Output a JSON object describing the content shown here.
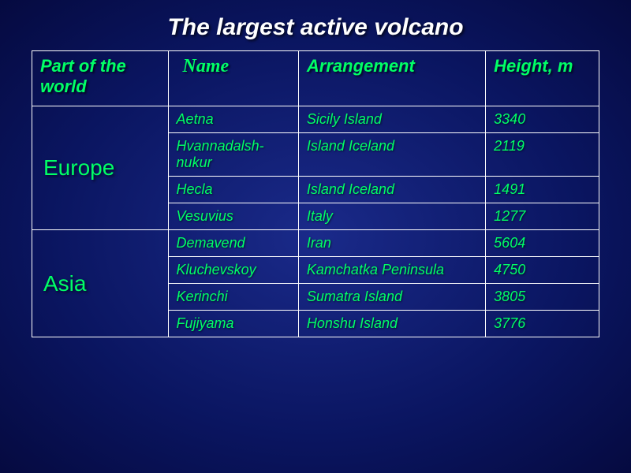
{
  "title": "The largest active volcano",
  "headers": {
    "part": "Part of the world",
    "name": "Name",
    "arrangement": "Arrangement",
    "height": "Height, m"
  },
  "regions": [
    {
      "label": "Europe",
      "rows": [
        {
          "name": "Aetna",
          "arrangement": "Sicily Island",
          "height": "3340"
        },
        {
          "name": "Hvannadalsh-nukur",
          "arrangement": "Island Iceland",
          "height": "2119"
        },
        {
          "name": "Hecla",
          "arrangement": "Island Iceland",
          "height": "1491"
        },
        {
          "name": "Vesuvius",
          "arrangement": "Italy",
          "height": "1277"
        }
      ]
    },
    {
      "label": "Asia",
      "rows": [
        {
          "name": "Demavend",
          "arrangement": "Iran",
          "height": "5604"
        },
        {
          "name": "Kluchevskoy",
          "arrangement": "Kamchatka Peninsula",
          "height": "4750"
        },
        {
          "name": "Kerinchi",
          "arrangement": "Sumatra Island",
          "height": "3805"
        },
        {
          "name": "Fujiyama",
          "arrangement": "Honshu Island",
          "height": "3776"
        }
      ]
    }
  ],
  "styling": {
    "background_gradient": [
      "#1a2a8a",
      "#0a1560",
      "#050a40"
    ],
    "text_color": "#00ff66",
    "title_color": "#ffffff",
    "border_color": "#ffffff",
    "title_fontsize": 30,
    "header_fontsize": 22,
    "region_fontsize": 28,
    "cell_fontsize": 18,
    "font_family": "Arial",
    "name_header_font": "Times New Roman",
    "col_widths": {
      "part": "24%",
      "name": "23%",
      "arrangement": "33%",
      "height": "20%"
    }
  }
}
